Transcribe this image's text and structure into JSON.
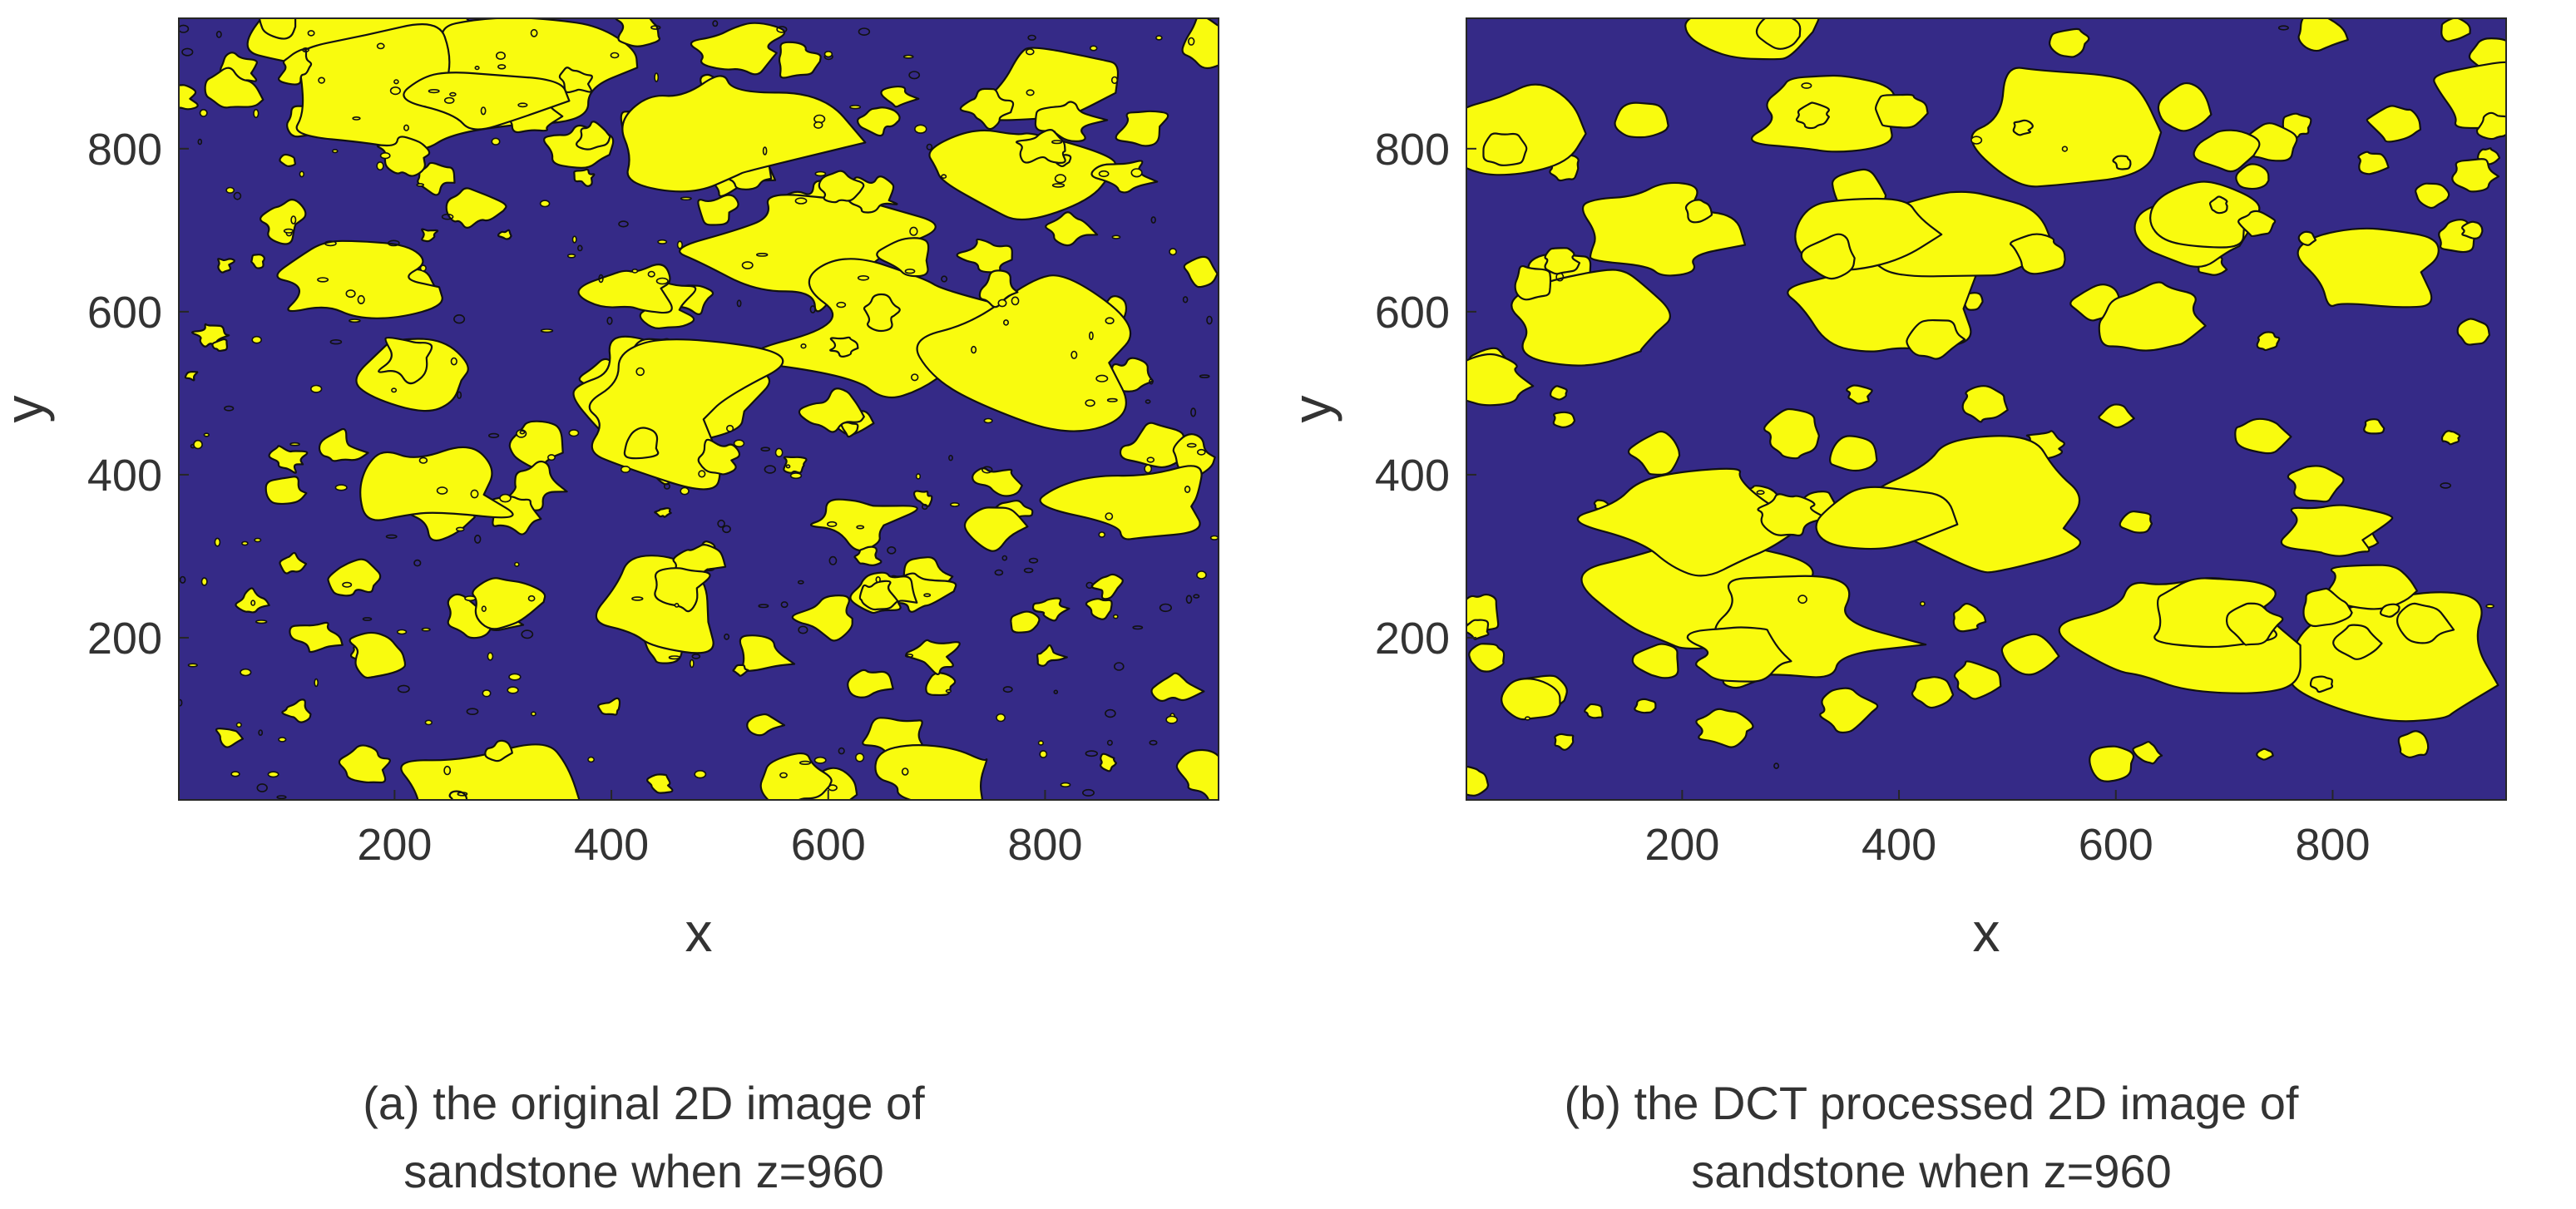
{
  "colors": {
    "background_phase": "#352a87",
    "pore_phase": "#f9fb0e",
    "contour": "#111111"
  },
  "chart_data": [
    {
      "type": "heatmap",
      "xlabel": "x",
      "ylabel": "y",
      "xlim": [
        1,
        960
      ],
      "ylim": [
        1,
        960
      ],
      "xticks": [
        200,
        400,
        600,
        800
      ],
      "yticks": [
        200,
        400,
        600,
        800
      ],
      "colormap": [
        "#352a87",
        "#f9fb0e"
      ],
      "grid": false,
      "caption_lines": [
        "(a) the original 2D image of",
        "sandstone when z=960"
      ],
      "seed": 11,
      "blob_count": 150,
      "roughness": 0.45,
      "speckle_count": 260
    },
    {
      "type": "heatmap",
      "xlabel": "x",
      "ylabel": "y",
      "xlim": [
        1,
        960
      ],
      "ylim": [
        1,
        960
      ],
      "xticks": [
        200,
        400,
        600,
        800
      ],
      "yticks": [
        200,
        400,
        600,
        800
      ],
      "colormap": [
        "#352a87",
        "#f9fb0e"
      ],
      "grid": false,
      "caption_lines": [
        "(b) the DCT processed 2D image of",
        "sandstone when z=960"
      ],
      "seed": 29,
      "blob_count": 120,
      "roughness": 0.18,
      "speckle_count": 12
    }
  ]
}
